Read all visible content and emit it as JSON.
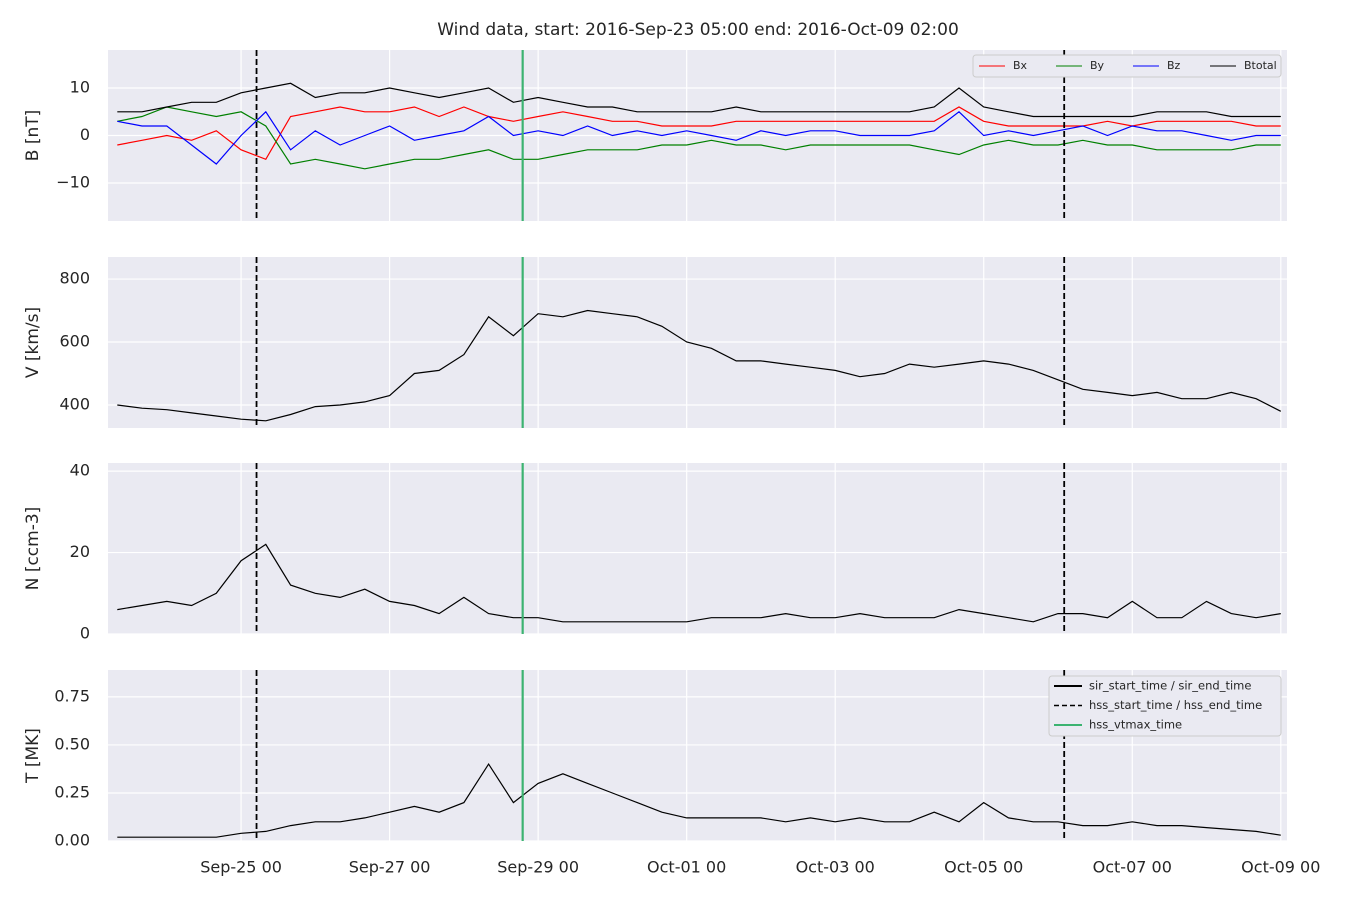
{
  "chart_data": [
    {
      "type": "line",
      "title": "Wind data, start: 2016-Sep-23 05:00  end: 2016-Oct-09 02:00",
      "ylabel": "B [nT]",
      "x": [
        "2016-09-23T08:00",
        "2016-09-23T16:00",
        "2016-09-24T00:00",
        "2016-09-24T08:00",
        "2016-09-24T16:00",
        "2016-09-25T00:00",
        "2016-09-25T08:00",
        "2016-09-25T16:00",
        "2016-09-26T00:00",
        "2016-09-26T08:00",
        "2016-09-26T16:00",
        "2016-09-27T00:00",
        "2016-09-27T08:00",
        "2016-09-27T16:00",
        "2016-09-28T00:00",
        "2016-09-28T08:00",
        "2016-09-28T16:00",
        "2016-09-29T00:00",
        "2016-09-29T08:00",
        "2016-09-29T16:00",
        "2016-09-30T00:00",
        "2016-09-30T08:00",
        "2016-09-30T16:00",
        "2016-10-01T00:00",
        "2016-10-01T08:00",
        "2016-10-01T16:00",
        "2016-10-02T00:00",
        "2016-10-02T08:00",
        "2016-10-02T16:00",
        "2016-10-03T00:00",
        "2016-10-03T08:00",
        "2016-10-03T16:00",
        "2016-10-04T00:00",
        "2016-10-04T08:00",
        "2016-10-04T16:00",
        "2016-10-05T00:00",
        "2016-10-05T08:00",
        "2016-10-05T16:00",
        "2016-10-06T00:00",
        "2016-10-06T08:00",
        "2016-10-06T16:00",
        "2016-10-07T00:00",
        "2016-10-07T08:00",
        "2016-10-07T16:00",
        "2016-10-08T00:00",
        "2016-10-08T08:00",
        "2016-10-08T16:00",
        "2016-10-09T00:00"
      ],
      "series": [
        {
          "name": "Bx",
          "color": "#ff0000",
          "values": [
            -2,
            -1,
            0,
            -1,
            1,
            -3,
            -5,
            4,
            5,
            6,
            5,
            5,
            6,
            4,
            6,
            4,
            3,
            4,
            5,
            4,
            3,
            3,
            2,
            2,
            2,
            3,
            3,
            3,
            3,
            3,
            3,
            3,
            3,
            3,
            6,
            3,
            2,
            2,
            2,
            2,
            3,
            2,
            3,
            3,
            3,
            3,
            2,
            2
          ]
        },
        {
          "name": "By",
          "color": "#008000",
          "values": [
            3,
            4,
            6,
            5,
            4,
            5,
            2,
            -6,
            -5,
            -6,
            -7,
            -6,
            -5,
            -5,
            -4,
            -3,
            -5,
            -5,
            -4,
            -3,
            -3,
            -3,
            -2,
            -2,
            -1,
            -2,
            -2,
            -3,
            -2,
            -2,
            -2,
            -2,
            -2,
            -3,
            -4,
            -2,
            -1,
            -2,
            -2,
            -1,
            -2,
            -2,
            -3,
            -3,
            -3,
            -3,
            -2,
            -2
          ]
        },
        {
          "name": "Bz",
          "color": "#0000ff",
          "values": [
            3,
            2,
            2,
            -2,
            -6,
            0,
            5,
            -3,
            1,
            -2,
            0,
            2,
            -1,
            0,
            1,
            4,
            0,
            1,
            0,
            2,
            0,
            1,
            0,
            1,
            0,
            -1,
            1,
            0,
            1,
            1,
            0,
            0,
            0,
            1,
            5,
            0,
            1,
            0,
            1,
            2,
            0,
            2,
            1,
            1,
            0,
            -1,
            0,
            0
          ]
        },
        {
          "name": "Btotal",
          "color": "#000000",
          "values": [
            5,
            5,
            6,
            7,
            7,
            9,
            10,
            11,
            8,
            9,
            9,
            10,
            9,
            8,
            9,
            10,
            7,
            8,
            7,
            6,
            6,
            5,
            5,
            5,
            5,
            6,
            5,
            5,
            5,
            5,
            5,
            5,
            5,
            6,
            10,
            6,
            5,
            4,
            4,
            4,
            4,
            4,
            5,
            5,
            5,
            4,
            4,
            4
          ]
        }
      ],
      "ylim": [
        -18,
        18
      ],
      "yticks": [
        {
          "value": -10,
          "label": "−10"
        },
        0,
        10
      ],
      "xlim": [
        "2016-09-23T05:00",
        "2016-10-09T02:00"
      ],
      "xticks": [
        "2016-09-25T00:00",
        "2016-09-27T00:00",
        "2016-09-29T00:00",
        "2016-10-01T00:00",
        "2016-10-03T00:00",
        "2016-10-05T00:00",
        "2016-10-07T00:00",
        "2016-10-09T00:00"
      ],
      "grid": true,
      "legend": "upper right"
    },
    {
      "type": "line",
      "ylabel": "V [km/s]",
      "color": "#000000",
      "x": [
        "2016-09-23T08:00",
        "2016-09-23T16:00",
        "2016-09-24T00:00",
        "2016-09-24T08:00",
        "2016-09-24T16:00",
        "2016-09-25T00:00",
        "2016-09-25T08:00",
        "2016-09-25T16:00",
        "2016-09-26T00:00",
        "2016-09-26T08:00",
        "2016-09-26T16:00",
        "2016-09-27T00:00",
        "2016-09-27T08:00",
        "2016-09-27T16:00",
        "2016-09-28T00:00",
        "2016-09-28T08:00",
        "2016-09-28T16:00",
        "2016-09-29T00:00",
        "2016-09-29T08:00",
        "2016-09-29T16:00",
        "2016-09-30T00:00",
        "2016-09-30T08:00",
        "2016-09-30T16:00",
        "2016-10-01T00:00",
        "2016-10-01T08:00",
        "2016-10-01T16:00",
        "2016-10-02T00:00",
        "2016-10-02T08:00",
        "2016-10-02T16:00",
        "2016-10-03T00:00",
        "2016-10-03T08:00",
        "2016-10-03T16:00",
        "2016-10-04T00:00",
        "2016-10-04T08:00",
        "2016-10-04T16:00",
        "2016-10-05T00:00",
        "2016-10-05T08:00",
        "2016-10-05T16:00",
        "2016-10-06T00:00",
        "2016-10-06T08:00",
        "2016-10-06T16:00",
        "2016-10-07T00:00",
        "2016-10-07T08:00",
        "2016-10-07T16:00",
        "2016-10-08T00:00",
        "2016-10-08T08:00",
        "2016-10-08T16:00",
        "2016-10-09T00:00"
      ],
      "values": [
        400,
        390,
        385,
        375,
        365,
        355,
        350,
        370,
        395,
        400,
        410,
        430,
        500,
        510,
        560,
        680,
        620,
        690,
        680,
        700,
        690,
        680,
        650,
        600,
        580,
        540,
        540,
        530,
        520,
        510,
        490,
        500,
        530,
        520,
        530,
        540,
        530,
        510,
        480,
        450,
        440,
        430,
        440,
        420,
        420,
        440,
        420,
        380
      ],
      "ylim": [
        327,
        870
      ],
      "yticks": [
        400,
        600,
        800
      ],
      "xlim": [
        "2016-09-23T05:00",
        "2016-10-09T02:00"
      ],
      "xticks": [
        "2016-09-25T00:00",
        "2016-09-27T00:00",
        "2016-09-29T00:00",
        "2016-10-01T00:00",
        "2016-10-03T00:00",
        "2016-10-05T00:00",
        "2016-10-07T00:00",
        "2016-10-09T00:00"
      ],
      "grid": true
    },
    {
      "type": "line",
      "ylabel": "N [ccm-3]",
      "color": "#000000",
      "x": [
        "2016-09-23T08:00",
        "2016-09-23T16:00",
        "2016-09-24T00:00",
        "2016-09-24T08:00",
        "2016-09-24T16:00",
        "2016-09-25T00:00",
        "2016-09-25T08:00",
        "2016-09-25T16:00",
        "2016-09-26T00:00",
        "2016-09-26T08:00",
        "2016-09-26T16:00",
        "2016-09-27T00:00",
        "2016-09-27T08:00",
        "2016-09-27T16:00",
        "2016-09-28T00:00",
        "2016-09-28T08:00",
        "2016-09-28T16:00",
        "2016-09-29T00:00",
        "2016-09-29T08:00",
        "2016-09-29T16:00",
        "2016-09-30T00:00",
        "2016-09-30T08:00",
        "2016-09-30T16:00",
        "2016-10-01T00:00",
        "2016-10-01T08:00",
        "2016-10-01T16:00",
        "2016-10-02T00:00",
        "2016-10-02T08:00",
        "2016-10-02T16:00",
        "2016-10-03T00:00",
        "2016-10-03T08:00",
        "2016-10-03T16:00",
        "2016-10-04T00:00",
        "2016-10-04T08:00",
        "2016-10-04T16:00",
        "2016-10-05T00:00",
        "2016-10-05T08:00",
        "2016-10-05T16:00",
        "2016-10-06T00:00",
        "2016-10-06T08:00",
        "2016-10-06T16:00",
        "2016-10-07T00:00",
        "2016-10-07T08:00",
        "2016-10-07T16:00",
        "2016-10-08T00:00",
        "2016-10-08T08:00",
        "2016-10-08T16:00",
        "2016-10-09T00:00"
      ],
      "values": [
        6,
        7,
        8,
        7,
        10,
        18,
        22,
        12,
        10,
        9,
        11,
        8,
        7,
        5,
        9,
        5,
        4,
        4,
        3,
        3,
        3,
        3,
        3,
        3,
        4,
        4,
        4,
        5,
        4,
        4,
        5,
        4,
        4,
        4,
        6,
        5,
        4,
        3,
        5,
        5,
        4,
        8,
        4,
        4,
        8,
        5,
        4,
        5
      ],
      "ylim": [
        0,
        42
      ],
      "yticks": [
        0,
        20,
        40
      ],
      "xlim": [
        "2016-09-23T05:00",
        "2016-10-09T02:00"
      ],
      "xticks": [
        "2016-09-25T00:00",
        "2016-09-27T00:00",
        "2016-09-29T00:00",
        "2016-10-01T00:00",
        "2016-10-03T00:00",
        "2016-10-05T00:00",
        "2016-10-07T00:00",
        "2016-10-09T00:00"
      ],
      "grid": true
    },
    {
      "type": "line",
      "ylabel": "T [MK]",
      "color": "#000000",
      "x": [
        "2016-09-23T08:00",
        "2016-09-23T16:00",
        "2016-09-24T00:00",
        "2016-09-24T08:00",
        "2016-09-24T16:00",
        "2016-09-25T00:00",
        "2016-09-25T08:00",
        "2016-09-25T16:00",
        "2016-09-26T00:00",
        "2016-09-26T08:00",
        "2016-09-26T16:00",
        "2016-09-27T00:00",
        "2016-09-27T08:00",
        "2016-09-27T16:00",
        "2016-09-28T00:00",
        "2016-09-28T08:00",
        "2016-09-28T16:00",
        "2016-09-29T00:00",
        "2016-09-29T08:00",
        "2016-09-29T16:00",
        "2016-09-30T00:00",
        "2016-09-30T08:00",
        "2016-09-30T16:00",
        "2016-10-01T00:00",
        "2016-10-01T08:00",
        "2016-10-01T16:00",
        "2016-10-02T00:00",
        "2016-10-02T08:00",
        "2016-10-02T16:00",
        "2016-10-03T00:00",
        "2016-10-03T08:00",
        "2016-10-03T16:00",
        "2016-10-04T00:00",
        "2016-10-04T08:00",
        "2016-10-04T16:00",
        "2016-10-05T00:00",
        "2016-10-05T08:00",
        "2016-10-05T16:00",
        "2016-10-06T00:00",
        "2016-10-06T08:00",
        "2016-10-06T16:00",
        "2016-10-07T00:00",
        "2016-10-07T08:00",
        "2016-10-07T16:00",
        "2016-10-08T00:00",
        "2016-10-08T08:00",
        "2016-10-08T16:00",
        "2016-10-09T00:00"
      ],
      "values": [
        0.02,
        0.02,
        0.02,
        0.02,
        0.02,
        0.04,
        0.05,
        0.08,
        0.1,
        0.1,
        0.12,
        0.15,
        0.18,
        0.15,
        0.2,
        0.4,
        0.2,
        0.3,
        0.35,
        0.3,
        0.25,
        0.2,
        0.15,
        0.12,
        0.12,
        0.12,
        0.12,
        0.1,
        0.12,
        0.1,
        0.12,
        0.1,
        0.1,
        0.15,
        0.1,
        0.2,
        0.12,
        0.1,
        0.1,
        0.08,
        0.08,
        0.1,
        0.08,
        0.08,
        0.07,
        0.06,
        0.05,
        0.03
      ],
      "ylim": [
        0,
        0.89
      ],
      "yticks": [
        {
          "value": 0,
          "label": "0.00"
        },
        0.25,
        {
          "value": 0.5,
          "label": "0.50"
        },
        0.75
      ],
      "xlim": [
        "2016-09-23T05:00",
        "2016-10-09T02:00"
      ],
      "xticks": [
        {
          "value": "2016-09-25T00:00",
          "label": "Sep-25 00"
        },
        {
          "value": "2016-09-27T00:00",
          "label": "Sep-27 00"
        },
        {
          "value": "2016-09-29T00:00",
          "label": "Sep-29 00"
        },
        {
          "value": "2016-10-01T00:00",
          "label": "Oct-01 00"
        },
        {
          "value": "2016-10-03T00:00",
          "label": "Oct-03 00"
        },
        {
          "value": "2016-10-05T00:00",
          "label": "Oct-05 00"
        },
        {
          "value": "2016-10-07T00:00",
          "label": "Oct-07 00"
        },
        {
          "value": "2016-10-09T00:00",
          "label": "Oct-09 00"
        }
      ],
      "grid": true,
      "legend": "upper right",
      "vlines": [
        {
          "name": "sir_start_time / sir_end_time",
          "style": "solid",
          "color": "#000000",
          "x": []
        },
        {
          "name": "hss_start_time / hss_end_time",
          "style": "dashed",
          "color": "#000000",
          "x": [
            "2016-09-25T05:00",
            "2016-10-06T02:00"
          ]
        },
        {
          "name": "hss_vtmax_time",
          "style": "solid",
          "color": "#3cb371",
          "x": [
            "2016-09-28T19:00"
          ]
        }
      ]
    }
  ]
}
